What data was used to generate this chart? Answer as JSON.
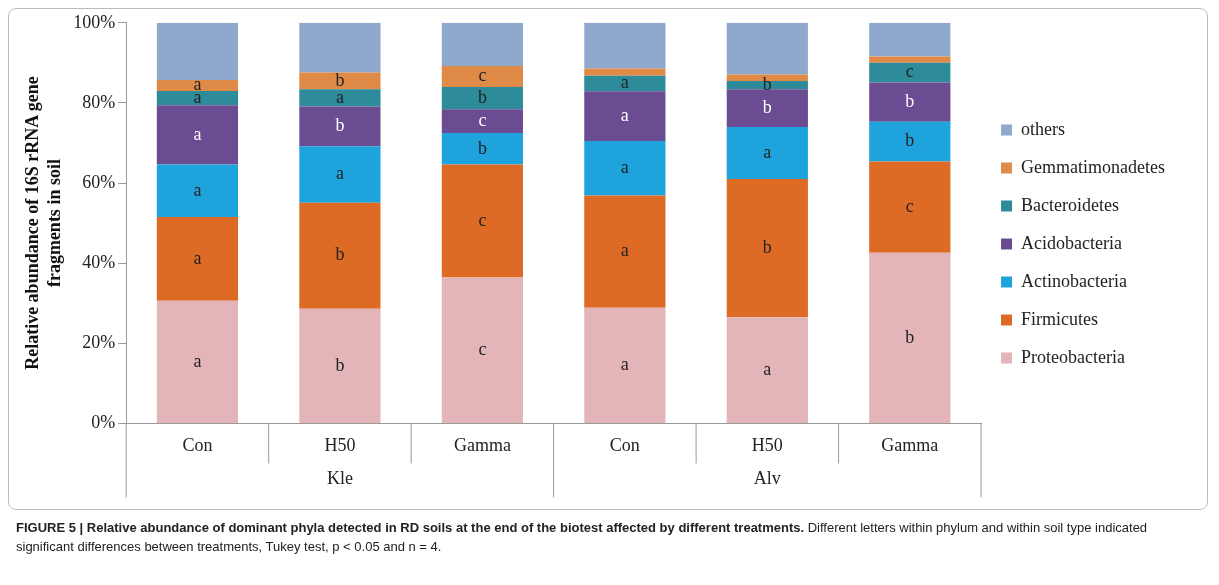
{
  "chart_data": {
    "type": "bar",
    "stacked": true,
    "ylabel": "Relative abundance of 16S rRNA gene fragments in soil",
    "categories": [
      "Con",
      "H50",
      "Gamma",
      "Con",
      "H50",
      "Gamma"
    ],
    "series": [
      {
        "name": "Proteobacteria",
        "color": "#e3b5b8",
        "values": [
          30.6,
          28.6,
          36.4,
          28.9,
          26.5,
          42.6
        ],
        "value_labels": [
          "a",
          "b",
          "c",
          "a",
          "a",
          "b"
        ]
      },
      {
        "name": "Firmicutes",
        "color": "#dd6a25",
        "values": [
          20.9,
          26.5,
          28.2,
          28.0,
          34.5,
          22.8
        ],
        "value_labels": [
          "a",
          "b",
          "c",
          "a",
          "b",
          "c"
        ]
      },
      {
        "name": "Actinobacteria",
        "color": "#1fa3dc",
        "values": [
          13.1,
          14.1,
          7.9,
          13.6,
          13.0,
          9.9
        ],
        "value_labels": [
          "a",
          "a",
          "b",
          "a",
          "a",
          "b"
        ]
      },
      {
        "name": "Acidobacteria",
        "color": "#6a4c93",
        "values": [
          14.8,
          9.9,
          5.9,
          12.4,
          9.4,
          9.8
        ],
        "value_labels": [
          "a",
          "b",
          "c",
          "a",
          "b",
          "b"
        ]
      },
      {
        "name": "Bacteroidetes",
        "color": "#2e8b9a",
        "values": [
          3.6,
          4.3,
          5.6,
          3.9,
          2.1,
          4.9
        ],
        "value_labels": [
          "a",
          "a",
          "b",
          "a",
          "b",
          "c"
        ]
      },
      {
        "name": "Gemmatimonadetes",
        "color": "#e08a48",
        "values": [
          2.7,
          4.2,
          5.2,
          1.8,
          1.6,
          1.6
        ],
        "value_labels": [
          "a",
          "b",
          "c",
          null,
          null,
          null
        ]
      },
      {
        "name": "others",
        "color": "#8fa8cb",
        "values": [
          14.3,
          12.4,
          10.8,
          11.4,
          12.9,
          8.4
        ]
      }
    ],
    "ylim": [
      0,
      100
    ],
    "yticks": [
      {
        "value": 0,
        "label": "0%"
      },
      {
        "value": 20,
        "label": "20%"
      },
      {
        "value": 40,
        "label": "40%"
      },
      {
        "value": 60,
        "label": "60%"
      },
      {
        "value": 80,
        "label": "80%"
      },
      {
        "value": 100,
        "label": "100%"
      }
    ],
    "grid": false,
    "legend": "right",
    "annotations": [
      "Kle",
      "Alv",
      "FIGURE 5 | Relative abundance of dominant phyla detected in RD soils at the end of the biotest affected by different treatments.",
      "Different letters within phylum and within soil type indicated significant differences between treatments, Tukey test, p < 0.05 and n = 4."
    ]
  }
}
